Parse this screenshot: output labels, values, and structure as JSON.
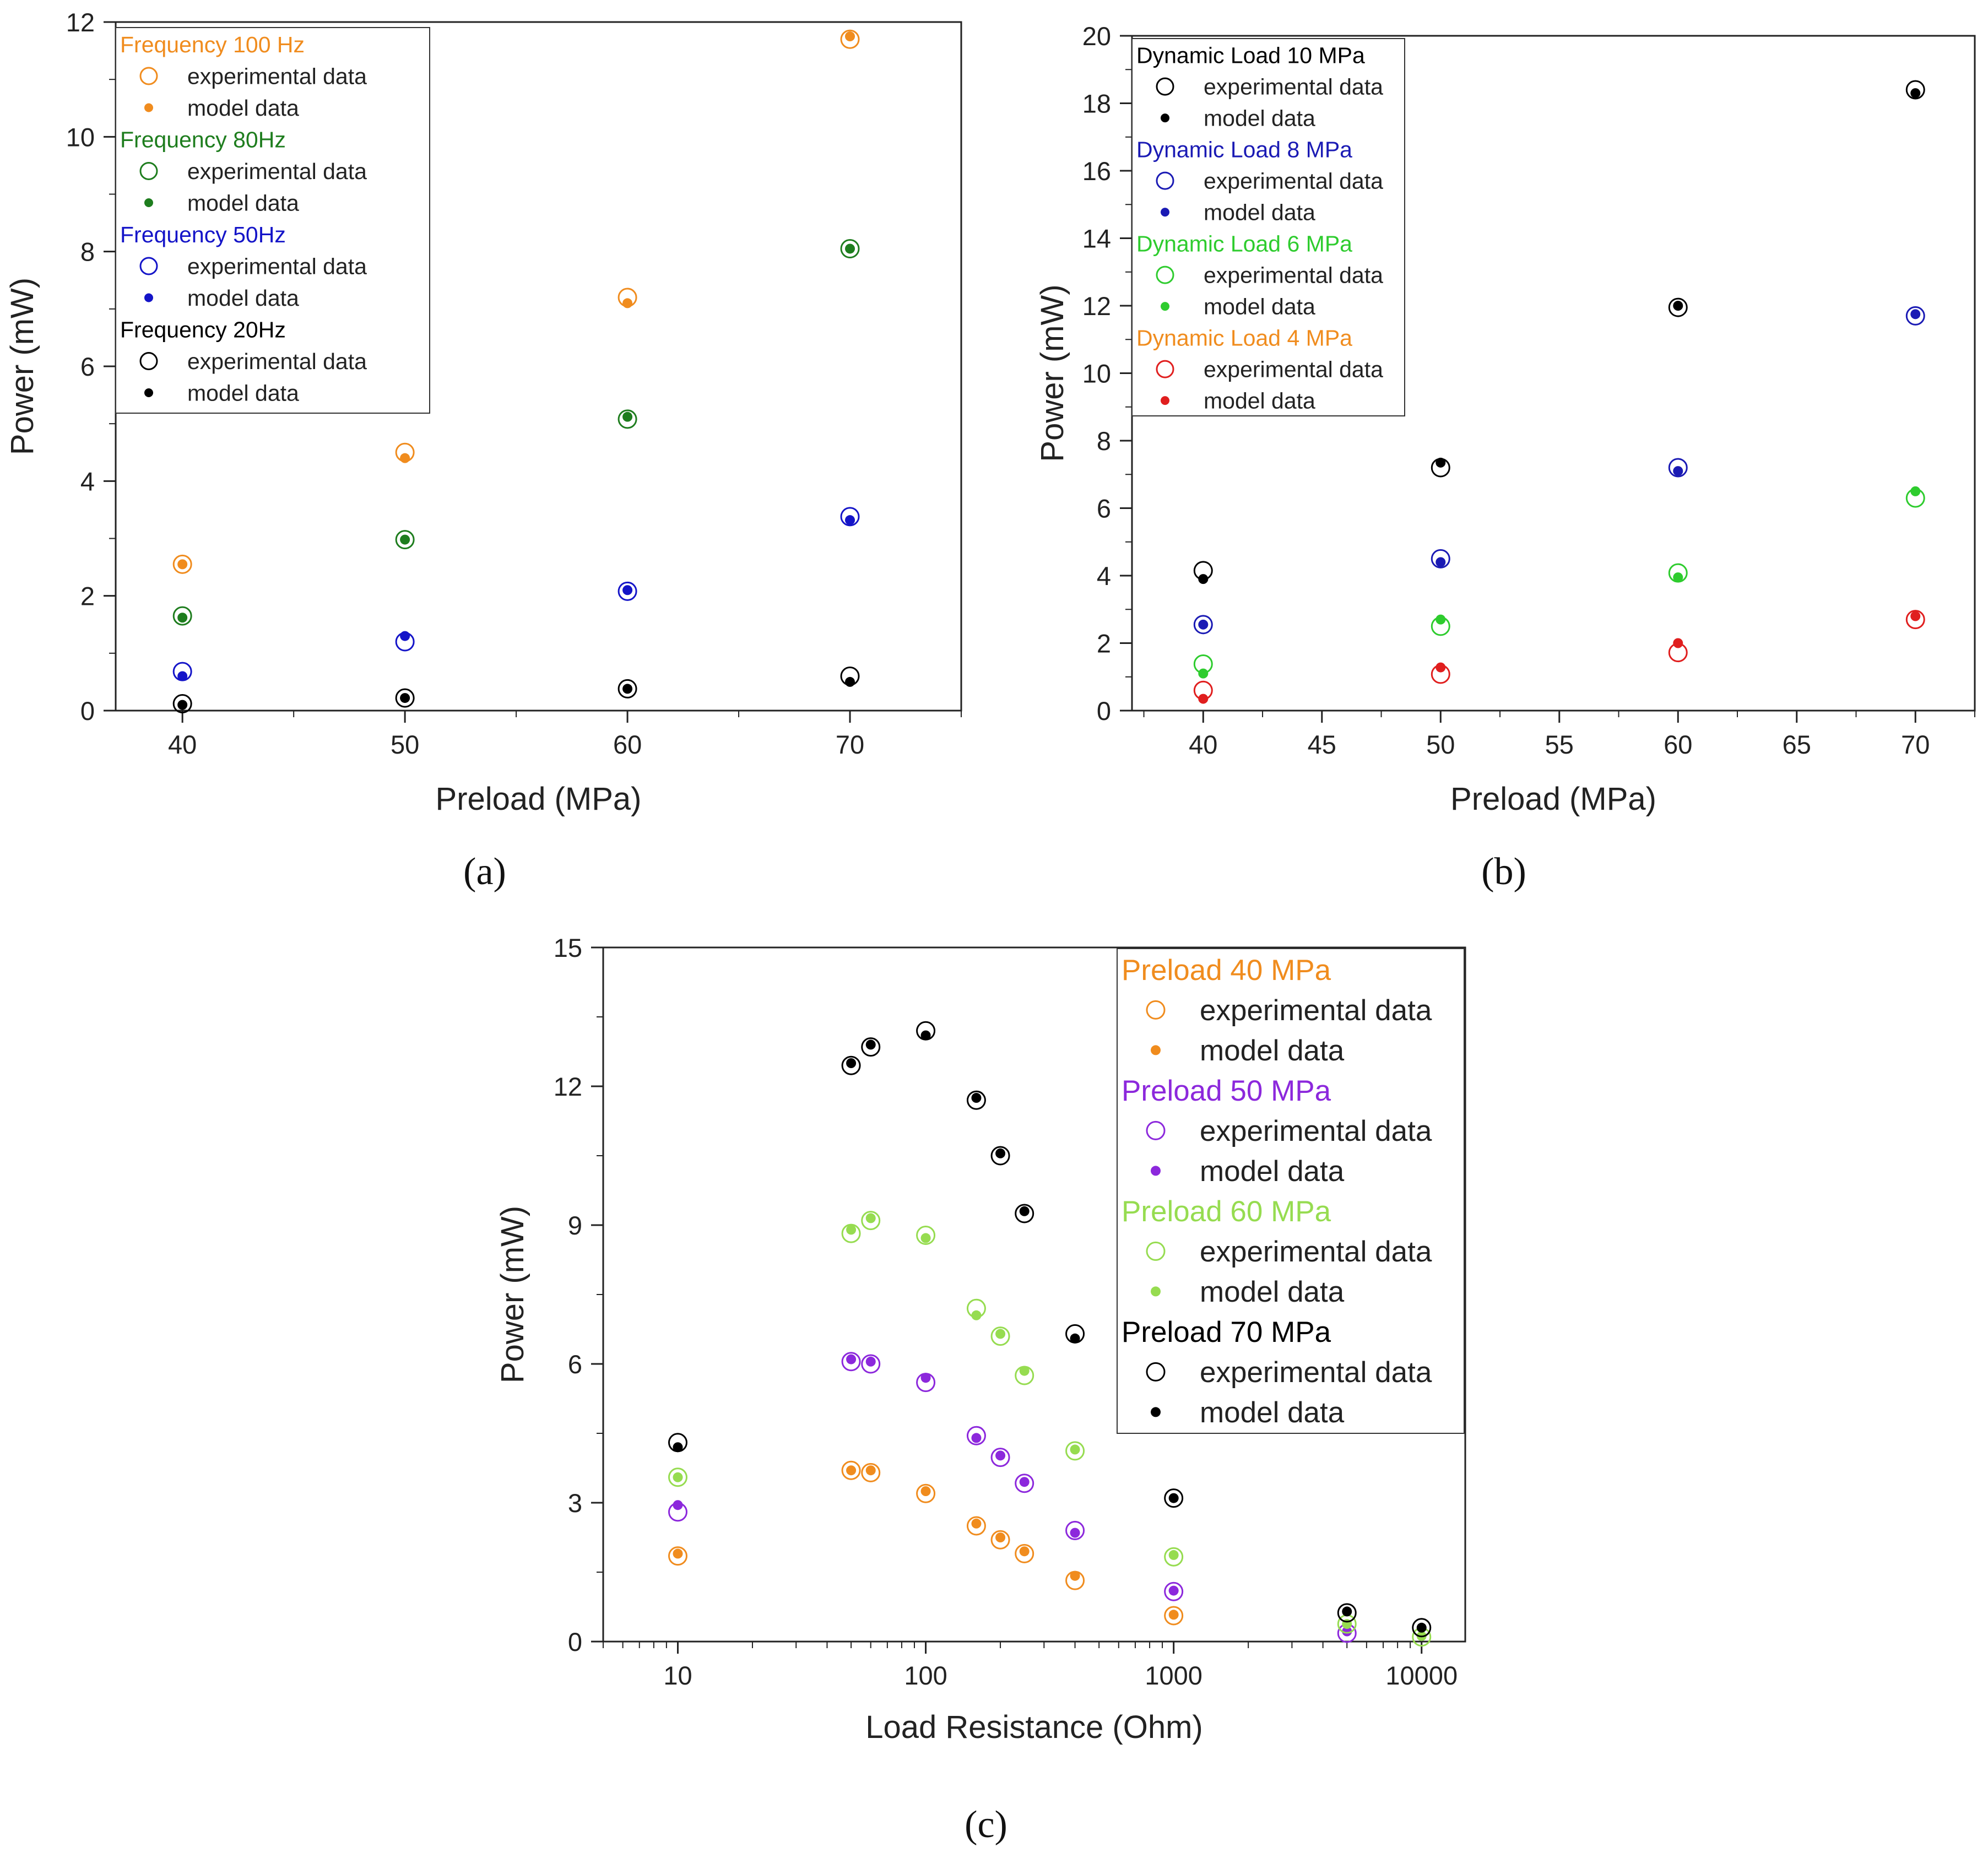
{
  "chart_data": [
    {
      "id": "a",
      "type": "scatter",
      "panel_label": "(a)",
      "xlabel": "Preload (MPa)",
      "ylabel": "Power (mW)",
      "xlim": [
        37,
        75
      ],
      "ylim": [
        0,
        12
      ],
      "x_scale": "linear",
      "xticks": [
        40,
        50,
        60,
        70
      ],
      "yticks": [
        0,
        2,
        4,
        6,
        8,
        10,
        12
      ],
      "legend_position": "top-left",
      "legend_entries": [
        "experimental data",
        "model data"
      ],
      "series": [
        {
          "name": "Frequency 100 Hz",
          "color": "#f08c1e",
          "x": [
            40,
            50,
            60,
            70
          ],
          "experimental": [
            2.55,
            4.5,
            7.2,
            11.7
          ],
          "model": [
            2.55,
            4.4,
            7.1,
            11.75
          ]
        },
        {
          "name": "Frequency 80Hz",
          "color": "#1e7d1e",
          "x": [
            40,
            50,
            60,
            70
          ],
          "experimental": [
            1.65,
            2.98,
            5.08,
            8.05
          ],
          "model": [
            1.62,
            2.98,
            5.12,
            8.05
          ]
        },
        {
          "name": "Frequency 50Hz",
          "color": "#1414c8",
          "x": [
            40,
            50,
            60,
            70
          ],
          "experimental": [
            0.68,
            1.2,
            2.08,
            3.38
          ],
          "model": [
            0.6,
            1.3,
            2.1,
            3.32
          ]
        },
        {
          "name": "Frequency 20Hz",
          "color": "#000000",
          "x": [
            40,
            50,
            60,
            70
          ],
          "experimental": [
            0.12,
            0.22,
            0.38,
            0.6
          ],
          "model": [
            0.1,
            0.22,
            0.38,
            0.5
          ]
        }
      ]
    },
    {
      "id": "b",
      "type": "scatter",
      "panel_label": "(b)",
      "xlabel": "Preload (MPa)",
      "ylabel": "Power (mW)",
      "xlim": [
        37,
        72.5
      ],
      "ylim": [
        0,
        20
      ],
      "x_scale": "linear",
      "xticks": [
        40,
        45,
        50,
        55,
        60,
        65,
        70
      ],
      "yticks": [
        0,
        2,
        4,
        6,
        8,
        10,
        12,
        14,
        16,
        18,
        20
      ],
      "legend_position": "top-left",
      "legend_entries": [
        "experimental data",
        "model data"
      ],
      "series": [
        {
          "name": "Dynamic Load 10 MPa",
          "color": "#000000",
          "x": [
            40,
            50,
            60,
            70
          ],
          "experimental": [
            4.15,
            7.2,
            11.95,
            18.4
          ],
          "model": [
            3.9,
            7.35,
            12.0,
            18.3
          ]
        },
        {
          "name": "Dynamic Load 8 MPa",
          "color": "#1a1ab4",
          "x": [
            40,
            50,
            60,
            70
          ],
          "experimental": [
            2.55,
            4.5,
            7.2,
            11.7
          ],
          "model": [
            2.55,
            4.4,
            7.1,
            11.75
          ]
        },
        {
          "name": "Dynamic Load 6 MPa",
          "color": "#2ecc2e",
          "x": [
            40,
            50,
            60,
            70
          ],
          "experimental": [
            1.38,
            2.5,
            4.08,
            6.3
          ],
          "model": [
            1.1,
            2.7,
            3.95,
            6.5
          ]
        },
        {
          "name": "Dynamic Load 4 MPa",
          "color": "#e01e1e",
          "label_color": "#f08c1e",
          "x": [
            40,
            50,
            60,
            70
          ],
          "experimental": [
            0.6,
            1.08,
            1.72,
            2.7
          ],
          "model": [
            0.35,
            1.28,
            2.0,
            2.8
          ]
        }
      ]
    },
    {
      "id": "c",
      "type": "scatter",
      "panel_label": "(c)",
      "xlabel": "Load Resistance (Ohm)",
      "ylabel": "Power (mW)",
      "xlim": [
        5,
        15000
      ],
      "ylim": [
        0,
        15
      ],
      "x_scale": "log",
      "xticks": [
        10,
        100,
        1000,
        10000
      ],
      "yticks": [
        0,
        3,
        6,
        9,
        12,
        15
      ],
      "legend_position": "top-right",
      "legend_entries": [
        "experimental data",
        "model data"
      ],
      "series": [
        {
          "name": "Preload 40 MPa",
          "color": "#f08c1e",
          "x": [
            10,
            50,
            60,
            100,
            160,
            200,
            250,
            400,
            1000
          ],
          "experimental": [
            1.85,
            3.7,
            3.65,
            3.2,
            2.5,
            2.2,
            1.9,
            1.32,
            0.56
          ],
          "model": [
            1.9,
            3.7,
            3.7,
            3.25,
            2.55,
            2.25,
            1.95,
            1.42,
            0.58
          ]
        },
        {
          "name": "Preload 50 MPa",
          "color": "#8c28dc",
          "x": [
            10,
            50,
            60,
            100,
            160,
            200,
            250,
            400,
            1000,
            5000
          ],
          "experimental": [
            2.8,
            6.05,
            6.0,
            5.6,
            4.45,
            3.98,
            3.42,
            2.4,
            1.08,
            0.18
          ],
          "model": [
            2.95,
            6.1,
            6.05,
            5.7,
            4.4,
            4.02,
            3.45,
            2.35,
            1.1,
            0.22
          ]
        },
        {
          "name": "Preload 60 MPa",
          "color": "#96dc50",
          "x": [
            10,
            50,
            60,
            100,
            160,
            200,
            250,
            400,
            1000,
            5000,
            10000
          ],
          "experimental": [
            3.55,
            8.82,
            9.1,
            8.78,
            7.2,
            6.6,
            5.75,
            4.12,
            1.83,
            0.38,
            0.1
          ],
          "model": [
            3.55,
            8.9,
            9.15,
            8.72,
            7.05,
            6.65,
            5.85,
            4.15,
            1.87,
            0.38,
            0.12
          ]
        },
        {
          "name": "Preload 70 MPa",
          "color": "#000000",
          "x": [
            10,
            50,
            60,
            100,
            160,
            200,
            250,
            400,
            1000,
            5000,
            10000
          ],
          "experimental": [
            4.3,
            12.45,
            12.85,
            13.2,
            11.7,
            10.5,
            9.25,
            6.65,
            3.1,
            0.62,
            0.3
          ],
          "model": [
            4.2,
            12.5,
            12.9,
            13.1,
            11.75,
            10.55,
            9.3,
            6.55,
            3.1,
            0.65,
            0.3
          ]
        }
      ]
    }
  ]
}
